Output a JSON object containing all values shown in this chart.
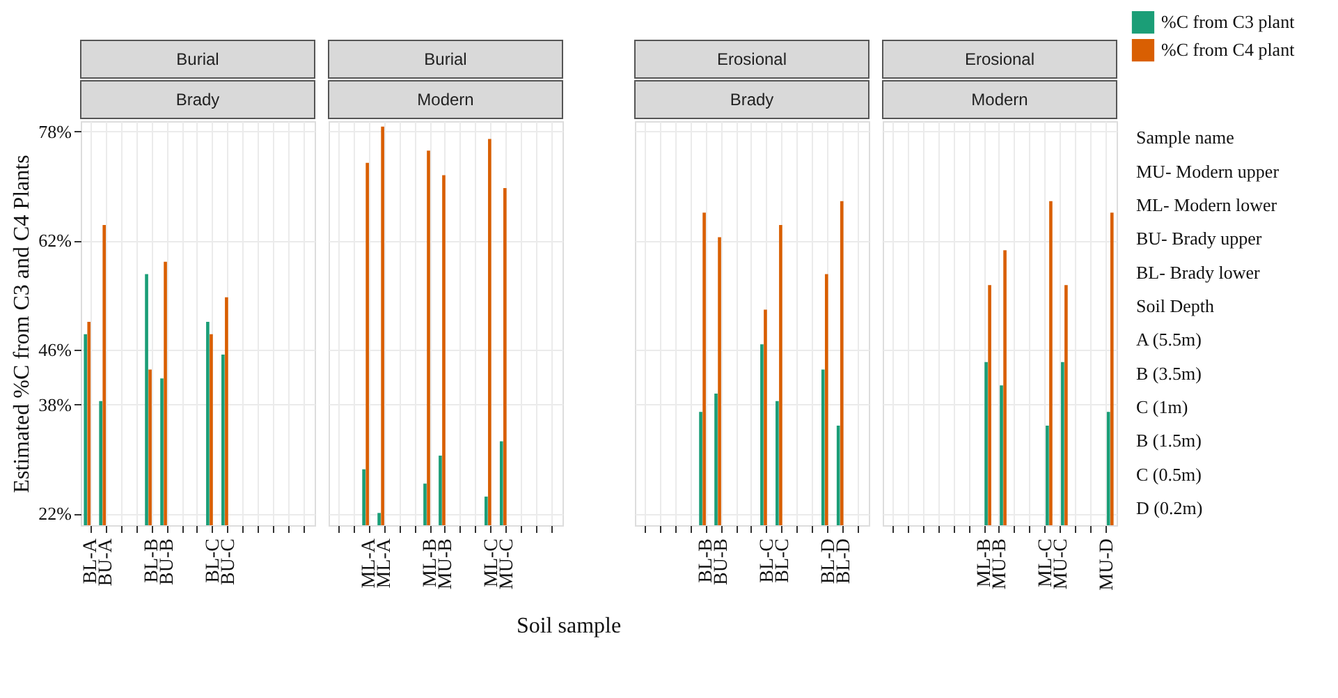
{
  "chart_data": [
    {
      "type": "bar",
      "title": "Burial",
      "subtitle": "Brady",
      "ylabel": "Estimated %C from C3 and C4 Plants",
      "categories": [
        "BL-A",
        "BU-A",
        null,
        null,
        "BL-B",
        "BU-B",
        null,
        null,
        "BL-C",
        "BU-C",
        null,
        null,
        null,
        null,
        null
      ],
      "series": [
        {
          "color": "#1b9e77",
          "values": [
            48.3,
            38.5,
            null,
            null,
            57.1,
            41.8,
            null,
            null,
            50.1,
            45.3,
            null,
            null,
            null,
            null,
            null
          ]
        },
        {
          "color": "#d95f02",
          "values": [
            50.1,
            64.3,
            null,
            null,
            43.1,
            58.9,
            null,
            null,
            48.3,
            53.7,
            null,
            null,
            null,
            null,
            null
          ]
        }
      ],
      "ylim": [
        20.3,
        79.5
      ],
      "yticks": [
        {
          "value": 22,
          "label": "22%"
        },
        {
          "value": 38,
          "label": "38%"
        },
        {
          "value": 46,
          "label": "46%"
        },
        {
          "value": 62,
          "label": "62%"
        },
        {
          "value": 78,
          "label": "78%"
        }
      ],
      "grid": true
    },
    {
      "type": "bar",
      "title": "Burial",
      "subtitle": "Modern",
      "xlabel": "Soil sample",
      "categories": [
        null,
        null,
        "ML-A",
        "ML-A",
        null,
        null,
        "ML-B",
        "MU-B",
        null,
        null,
        "ML-C",
        "MU-C",
        null,
        null,
        null
      ],
      "series": [
        {
          "color": "#1b9e77",
          "values": [
            null,
            null,
            28.5,
            22.1,
            null,
            null,
            26.4,
            30.5,
            null,
            null,
            24.5,
            32.6,
            null,
            null,
            null
          ]
        },
        {
          "color": "#d95f02",
          "values": [
            null,
            null,
            73.4,
            78.7,
            null,
            null,
            75.2,
            71.6,
            null,
            null,
            76.9,
            69.7,
            null,
            null,
            null
          ]
        }
      ],
      "ylim": [
        20.3,
        79.5
      ],
      "yticks": [
        22,
        38,
        46,
        62,
        78
      ],
      "grid": true,
      "tick_labels": "x"
    },
    {
      "type": "bar",
      "title": "Erosional",
      "subtitle": "Brady",
      "categories": [
        null,
        null,
        null,
        null,
        "BL-B",
        "BU-B",
        null,
        null,
        "BL-C",
        "BL-C",
        null,
        null,
        "BL-D",
        "BL-D",
        null
      ],
      "series": [
        {
          "color": "#1b9e77",
          "values": [
            null,
            null,
            null,
            null,
            36.9,
            39.6,
            null,
            null,
            46.8,
            38.5,
            null,
            null,
            43.1,
            34.9,
            null
          ]
        },
        {
          "color": "#d95f02",
          "values": [
            null,
            null,
            null,
            null,
            66.1,
            62.5,
            null,
            null,
            51.9,
            64.3,
            null,
            null,
            57.1,
            67.8,
            null
          ]
        }
      ],
      "ylim": [
        20.3,
        79.5
      ],
      "yticks": [
        22,
        38,
        46,
        62,
        78
      ],
      "grid": true,
      "tick_labels": "x"
    },
    {
      "type": "bar",
      "title": "Erosional",
      "subtitle": "Modern",
      "categories": [
        null,
        null,
        null,
        null,
        null,
        null,
        "ML-B",
        "MU-B",
        null,
        null,
        "ML-C",
        "MU-C",
        null,
        null,
        "MU-D"
      ],
      "series": [
        {
          "name": "%C from C3 plant",
          "color": "#1b9e77",
          "values": [
            null,
            null,
            null,
            null,
            null,
            null,
            44.2,
            40.8,
            null,
            null,
            34.9,
            44.2,
            null,
            null,
            36.9
          ]
        },
        {
          "name": "%C from C4 plant",
          "color": "#d95f02",
          "values": [
            null,
            null,
            null,
            null,
            null,
            null,
            55.5,
            60.6,
            null,
            null,
            67.8,
            55.5,
            null,
            null,
            66.1
          ]
        }
      ],
      "ylim": [
        20.3,
        79.5
      ],
      "yticks": [
        22,
        38,
        46,
        62,
        78
      ],
      "grid": true,
      "legend": "top right",
      "tick_labels": "x",
      "annotations": [
        "Sample name",
        "MU- Modern upper",
        "ML- Modern lower",
        "BU- Brady upper",
        "BL- Brady lower",
        "Soil Depth",
        "A (5.5m)",
        "B (3.5m)",
        "C (1m)",
        "B (1.5m)",
        "C  (0.5m)",
        "D (0.2m)"
      ]
    }
  ]
}
